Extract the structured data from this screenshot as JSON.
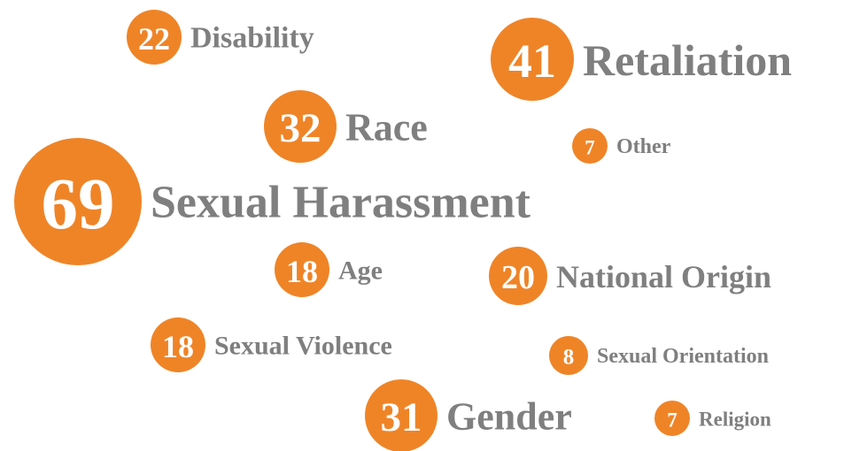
{
  "items": [
    {
      "value": 22,
      "label": "Disability"
    },
    {
      "value": 41,
      "label": "Retaliation"
    },
    {
      "value": 32,
      "label": "Race"
    },
    {
      "value": 7,
      "label": "Other"
    },
    {
      "value": 69,
      "label": "Sexual Harassment"
    },
    {
      "value": 18,
      "label": "Age"
    },
    {
      "value": 20,
      "label": "National Origin"
    },
    {
      "value": 18,
      "label": "Sexual Violence"
    },
    {
      "value": 8,
      "label": "Sexual Orientation"
    },
    {
      "value": 31,
      "label": "Gender"
    },
    {
      "value": 7,
      "label": "Religion"
    }
  ]
}
